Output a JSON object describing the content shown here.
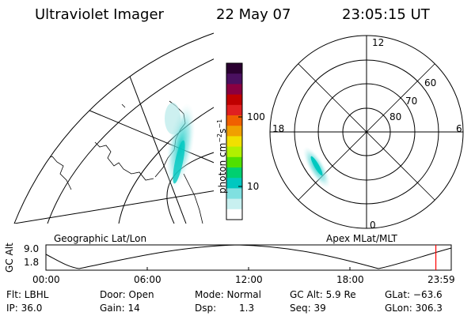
{
  "header": {
    "title": "Ultraviolet Imager",
    "date": "22 May 07",
    "time": "23:05:15 UT"
  },
  "geographic_panel": {
    "label": "Geographic Lat/Lon"
  },
  "colorbar": {
    "unit_label": "photon cm",
    "unit_exp1": "−2",
    "unit_mid": "s",
    "unit_exp2": "−1",
    "ticks": [
      "100",
      "10"
    ],
    "colors": [
      "#2a0030",
      "#4a1060",
      "#8a0040",
      "#c00000",
      "#e02020",
      "#f06000",
      "#f0a000",
      "#f0e000",
      "#b0f000",
      "#50e000",
      "#00d070",
      "#00c8c0",
      "#80e0e0",
      "#c8f0f0",
      "#ffffff"
    ]
  },
  "polar_panel": {
    "label": "Apex MLat/MLT",
    "mlt_labels": {
      "top": "12",
      "bottom": "0",
      "left": "18",
      "right": "6"
    },
    "mlat_labels": [
      "60",
      "70",
      "80"
    ]
  },
  "altitude_plot": {
    "ylabel": "GC Alt",
    "ymax": "9.0",
    "ymin": "1.8",
    "xticks": [
      "00:00",
      "06:00",
      "12:00",
      "18:00",
      "23:59"
    ],
    "current_time_fraction": 0.962,
    "marker_color": "#ff0000"
  },
  "footer": {
    "flt": "Flt: LBHL",
    "ip": "IP: 36.0",
    "door": "Door: Open",
    "gain": "Gain: 14",
    "mode": "Mode: Normal",
    "dsp_label": "Dsp:",
    "dsp_value": "1.3",
    "gcalt": "GC Alt: 5.9 Re",
    "seq": "Seq: 39",
    "glat": "GLat: −63.6",
    "glon": "GLon: 306.3"
  }
}
